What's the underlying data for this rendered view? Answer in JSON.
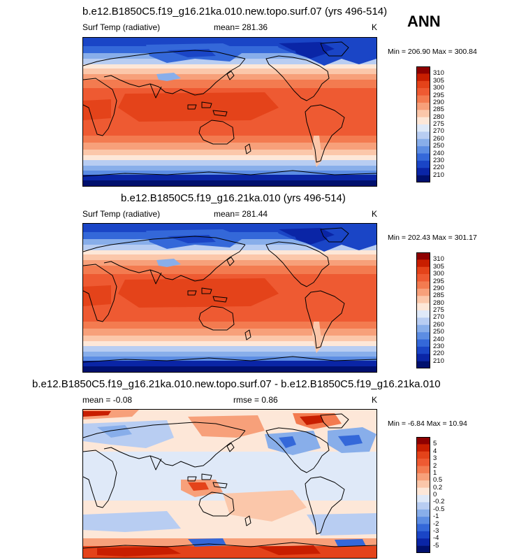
{
  "season_label": "ANN",
  "chart_data": [
    {
      "type": "heatmap",
      "title": "b.e12.B1850C5.f19_g16.21ka.010.new.topo.surf.07 (yrs 496-514)",
      "variable": "Surf Temp (radiative)",
      "mean_text": "mean= 281.36",
      "units": "K",
      "minmax": "Min = 206.90 Max = 300.84",
      "colorbar": {
        "levels": [
          "310",
          "305",
          "300",
          "295",
          "290",
          "285",
          "280",
          "275",
          "270",
          "260",
          "250",
          "240",
          "230",
          "220",
          "210"
        ],
        "colors": [
          "#8e0000",
          "#c81e00",
          "#e4431a",
          "#ee5a32",
          "#f37b50",
          "#f7a07a",
          "#fbc7aa",
          "#fde7d8",
          "#dfe9f8",
          "#b8cdf2",
          "#88aeea",
          "#5c8de3",
          "#3468d9",
          "#1a45c6",
          "#0a25a6",
          "#00106e"
        ]
      }
    },
    {
      "type": "heatmap",
      "title": "b.e12.B1850C5.f19_g16.21ka.010 (yrs 496-514)",
      "variable": "Surf Temp (radiative)",
      "mean_text": "mean= 281.44",
      "units": "K",
      "minmax": "Min = 202.43 Max = 301.17",
      "colorbar": {
        "levels": [
          "310",
          "305",
          "300",
          "295",
          "290",
          "285",
          "280",
          "275",
          "270",
          "260",
          "250",
          "240",
          "230",
          "220",
          "210"
        ],
        "colors": [
          "#8e0000",
          "#c81e00",
          "#e4431a",
          "#ee5a32",
          "#f37b50",
          "#f7a07a",
          "#fbc7aa",
          "#fde7d8",
          "#dfe9f8",
          "#b8cdf2",
          "#88aeea",
          "#5c8de3",
          "#3468d9",
          "#1a45c6",
          "#0a25a6",
          "#00106e"
        ]
      }
    },
    {
      "type": "heatmap",
      "title": "b.e12.B1850C5.f19_g16.21ka.010.new.topo.surf.07 - b.e12.B1850C5.f19_g16.21ka.010",
      "mean_text": "mean =  -0.08",
      "rmse_text": "rmse =   0.86",
      "units": "K",
      "minmax": "Min =  -6.84 Max =  10.94",
      "colorbar": {
        "levels": [
          "5",
          "4",
          "3",
          "2",
          "1",
          "0.5",
          "0.2",
          "0",
          "-0.2",
          "-0.5",
          "-1",
          "-2",
          "-3",
          "-4",
          "-5"
        ],
        "colors": [
          "#8e0000",
          "#c81e00",
          "#e4431a",
          "#ee5a32",
          "#f37b50",
          "#f7a07a",
          "#fbc7aa",
          "#fde7d8",
          "#dfe9f8",
          "#b8cdf2",
          "#88aeea",
          "#5c8de3",
          "#3468d9",
          "#1a45c6",
          "#0a25a6",
          "#00106e"
        ]
      }
    }
  ]
}
